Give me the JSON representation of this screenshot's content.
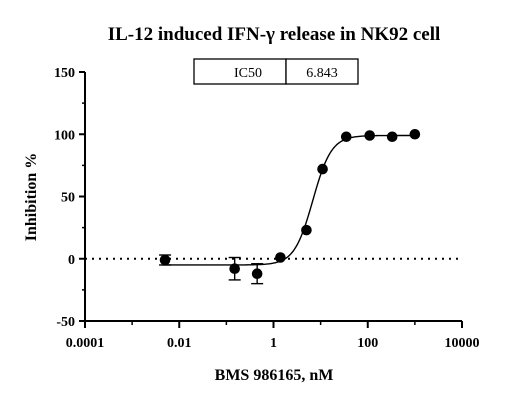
{
  "chart_data": {
    "type": "scatter",
    "title": "IL-12 induced IFN-γ release in NK92 cell",
    "xlabel": "BMS 986165, nM",
    "ylabel": "Inhibition %",
    "x_scale": "log",
    "xlim": [
      0.0001,
      10000
    ],
    "ylim": [
      -50,
      150
    ],
    "x_ticks": [
      0.0001,
      0.01,
      1,
      100,
      10000
    ],
    "x_tick_labels": [
      "0.0001",
      "0.01",
      "1",
      "100",
      "10000"
    ],
    "y_ticks": [
      -50,
      0,
      50,
      100,
      150
    ],
    "y_tick_labels": [
      "-50",
      "0",
      "50",
      "100",
      "150"
    ],
    "reference_line": {
      "y": 0,
      "style": "dotted"
    },
    "series": [
      {
        "points": [
          {
            "x": 0.005,
            "y": -1,
            "err": 4
          },
          {
            "x": 0.15,
            "y": -8,
            "err": 9
          },
          {
            "x": 0.45,
            "y": -12,
            "err": 8
          },
          {
            "x": 1.4,
            "y": 1,
            "err": 0
          },
          {
            "x": 5,
            "y": 23,
            "err": 0
          },
          {
            "x": 11,
            "y": 72,
            "err": 0
          },
          {
            "x": 35,
            "y": 98,
            "err": 0
          },
          {
            "x": 110,
            "y": 99,
            "err": 0
          },
          {
            "x": 330,
            "y": 98,
            "err": 0
          },
          {
            "x": 1000,
            "y": 100,
            "err": 0
          }
        ],
        "fit": {
          "model": "4PL",
          "bottom": -5,
          "top": 99,
          "ic50": 6.843,
          "hill": 2.2
        }
      }
    ],
    "annotation_table": {
      "label": "IC50",
      "value": "6.843"
    }
  }
}
